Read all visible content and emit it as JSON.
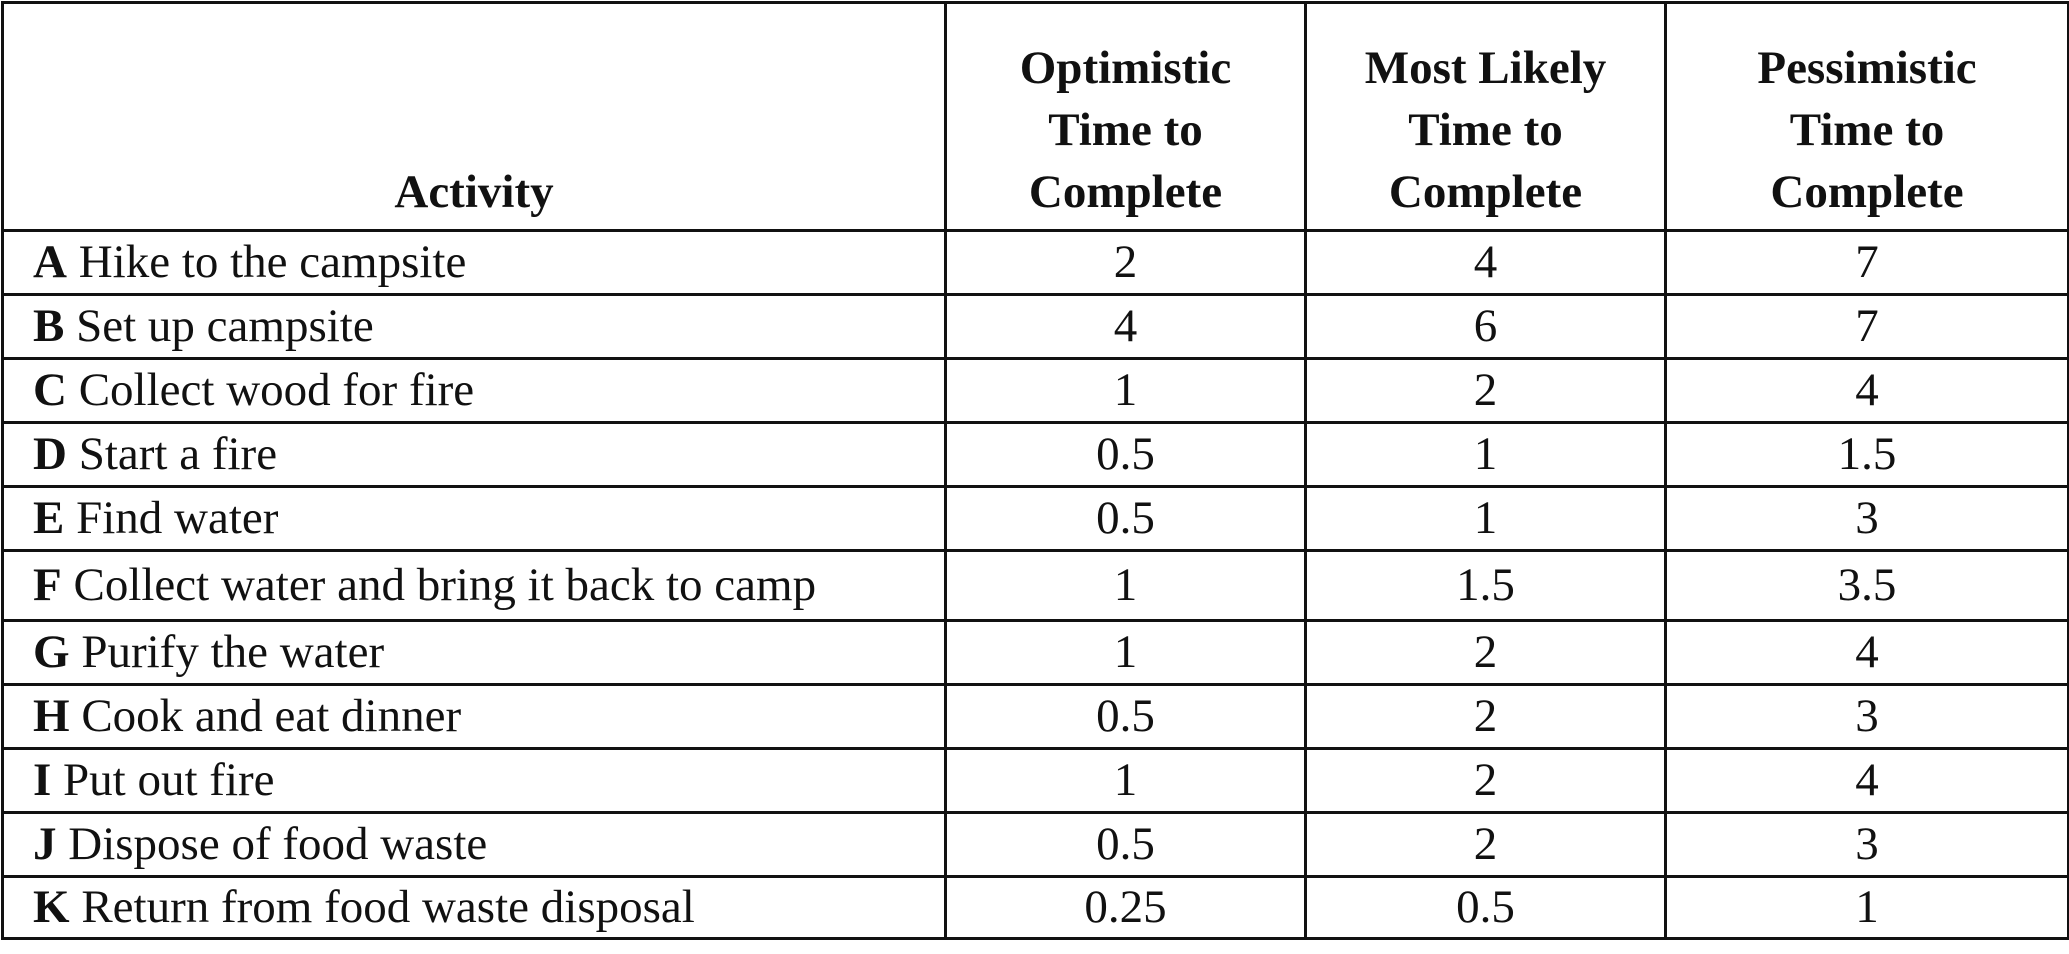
{
  "table": {
    "headers": {
      "activity": "Activity",
      "optimistic": [
        "Optimistic",
        "Time to",
        "Complete"
      ],
      "most_likely": [
        "Most Likely",
        "Time to",
        "Complete"
      ],
      "pessimistic": [
        "Pessimistic",
        "Time to",
        "Complete"
      ]
    },
    "rows": [
      {
        "id": "A",
        "name": "Hike to the campsite",
        "optimistic": "2",
        "most_likely": "4",
        "pessimistic": "7"
      },
      {
        "id": "B",
        "name": "Set up campsite",
        "optimistic": "4",
        "most_likely": "6",
        "pessimistic": "7"
      },
      {
        "id": "C",
        "name": "Collect wood for fire",
        "optimistic": "1",
        "most_likely": "2",
        "pessimistic": "4"
      },
      {
        "id": "D",
        "name": "Start a fire",
        "optimistic": "0.5",
        "most_likely": "1",
        "pessimistic": "1.5"
      },
      {
        "id": "E",
        "name": "Find water",
        "optimistic": "0.5",
        "most_likely": "1",
        "pessimistic": "3"
      },
      {
        "id": "F",
        "name": "Collect water and bring it back to camp",
        "optimistic": "1",
        "most_likely": "1.5",
        "pessimistic": "3.5"
      },
      {
        "id": "G",
        "name": "Purify the water",
        "optimistic": "1",
        "most_likely": "2",
        "pessimistic": "4"
      },
      {
        "id": "H",
        "name": "Cook and eat dinner",
        "optimistic": "0.5",
        "most_likely": "2",
        "pessimistic": "3"
      },
      {
        "id": "I",
        "name": "Put out fire",
        "optimistic": "1",
        "most_likely": "2",
        "pessimistic": "4"
      },
      {
        "id": "J",
        "name": "Dispose of food waste",
        "optimistic": "0.5",
        "most_likely": "2",
        "pessimistic": "3"
      },
      {
        "id": "K",
        "name": "Return from food waste disposal",
        "optimistic": "0.25",
        "most_likely": "0.5",
        "pessimistic": "1"
      }
    ]
  }
}
